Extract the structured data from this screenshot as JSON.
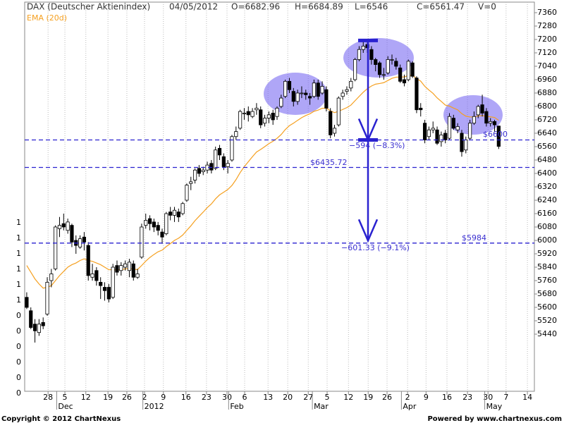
{
  "chart_data": {
    "type": "candlestick",
    "title": "DAX (Deutscher Aktienindex)",
    "header": [
      "04/05/2012",
      "O=6682.96",
      "H=6684.89",
      "L=6546",
      "C=6561.47",
      "V=0"
    ],
    "footer_left": "Copyright © 2012 ChartNexus",
    "footer_right": "Powered by www.chartnexus.com",
    "left_axis_labels": [
      "1",
      "1",
      "1",
      "1",
      "1",
      "1",
      "0",
      "0",
      "0",
      "0",
      "0",
      "0"
    ],
    "up_color": "#ffffff",
    "down_color": "#000000",
    "wick_color": "#000000",
    "xlim": [
      -0.5,
      123.7
    ],
    "ylim": [
      5099,
      7423
    ],
    "yticks": [
      5440,
      5520,
      5600,
      5680,
      5760,
      5840,
      5920,
      6000,
      6080,
      6160,
      6240,
      6320,
      6400,
      6480,
      6560,
      6640,
      6720,
      6800,
      6880,
      6960,
      7040,
      7120,
      7200,
      7280,
      7360
    ],
    "grid": "x",
    "xticks": [
      {
        "value": 5.2,
        "label": "28"
      },
      {
        "value": 9.3,
        "label": "5"
      },
      {
        "value": 14.4,
        "label": "12"
      },
      {
        "value": 19.8,
        "label": "19"
      },
      {
        "value": 24.4,
        "label": "26"
      },
      {
        "value": 28.7,
        "label": "2"
      },
      {
        "value": 33.3,
        "label": "9"
      },
      {
        "value": 38.8,
        "label": "16"
      },
      {
        "value": 43.8,
        "label": "23"
      },
      {
        "value": 48.8,
        "label": "30"
      },
      {
        "value": 53.1,
        "label": "6"
      },
      {
        "value": 58.8,
        "label": "13"
      },
      {
        "value": 63.6,
        "label": "20"
      },
      {
        "value": 68.6,
        "label": "27"
      },
      {
        "value": 73.2,
        "label": "5"
      },
      {
        "value": 78.4,
        "label": "12"
      },
      {
        "value": 83.2,
        "label": "19"
      },
      {
        "value": 87.8,
        "label": "26"
      },
      {
        "value": 92.8,
        "label": "2"
      },
      {
        "value": 97.3,
        "label": "9"
      },
      {
        "value": 102.4,
        "label": "16"
      },
      {
        "value": 107.4,
        "label": "23"
      },
      {
        "value": 112.4,
        "label": "30"
      },
      {
        "value": 116.8,
        "label": "7"
      },
      {
        "value": 122,
        "label": "14"
      }
    ],
    "month_labels": [
      {
        "value": 7.3,
        "label": "Dec"
      },
      {
        "value": 28.3,
        "label": "2012"
      },
      {
        "value": 49.2,
        "label": "Feb"
      },
      {
        "value": 69.6,
        "label": "Mar"
      },
      {
        "value": 91.3,
        "label": "Apr"
      },
      {
        "value": 111.6,
        "label": "May"
      }
    ],
    "open": [
      5660,
      5580,
      5500,
      5450,
      5510,
      5560,
      5760,
      5830,
      6070,
      6100,
      6060,
      6090,
      6000,
      5960,
      6020,
      5970,
      5780,
      5820,
      5750,
      5720,
      5720,
      5660,
      5850,
      5820,
      5840,
      5820,
      5860,
      5780,
      5900,
      6090,
      6130,
      6110,
      6090,
      6050,
      6040,
      6170,
      6150,
      6170,
      6160,
      6240,
      6340,
      6360,
      6430,
      6410,
      6420,
      6460,
      6430,
      6550,
      6500,
      6440,
      6480,
      6620,
      6670,
      6760,
      6770,
      6740,
      6780,
      6780,
      6700,
      6730,
      6760,
      6740,
      6800,
      6860,
      6950,
      6890,
      6830,
      6880,
      6880,
      6860,
      6860,
      6940,
      6880,
      6900,
      6770,
      6640,
      6690,
      6860,
      6890,
      6910,
      6960,
      7080,
      7140,
      7170,
      7140,
      7080,
      7060,
      6990,
      7000,
      7080,
      7070,
      7030,
      6960,
      6960,
      7060,
      6970,
      6790,
      6700,
      6620,
      6660,
      6660,
      6590,
      6640,
      6610,
      6730,
      6660,
      6640,
      6540,
      6610,
      6700,
      6750,
      6810,
      6770,
      6700,
      6710,
      6682.96
    ],
    "high": [
      5690,
      5600,
      5530,
      5530,
      5540,
      5780,
      5830,
      6090,
      6140,
      6160,
      6130,
      6100,
      6030,
      6030,
      6050,
      5990,
      5860,
      5840,
      5780,
      5750,
      5740,
      5860,
      5880,
      5870,
      5880,
      5890,
      5880,
      5830,
      6100,
      6160,
      6150,
      6130,
      6110,
      6070,
      6170,
      6200,
      6200,
      6190,
      6230,
      6340,
      6380,
      6430,
      6450,
      6440,
      6470,
      6480,
      6560,
      6570,
      6520,
      6480,
      6630,
      6680,
      6780,
      6790,
      6800,
      6790,
      6820,
      6800,
      6750,
      6770,
      6780,
      6800,
      6870,
      6960,
      6970,
      6910,
      6900,
      6920,
      6900,
      6880,
      6960,
      6960,
      6950,
      6920,
      6790,
      6690,
      6860,
      6900,
      6920,
      6970,
      7090,
      7160,
      7190,
      7190,
      7160,
      7090,
      7070,
      7030,
      7100,
      7110,
      7090,
      7050,
      6990,
      7080,
      7070,
      6980,
      6820,
      6720,
      6680,
      6710,
      6680,
      6650,
      6660,
      6760,
      6750,
      6700,
      6660,
      6620,
      6720,
      6770,
      6810,
      6870,
      6790,
      6730,
      6720,
      6684.89
    ],
    "low": [
      5590,
      5470,
      5390,
      5430,
      5470,
      5550,
      5720,
      5820,
      6020,
      6060,
      6040,
      5960,
      5920,
      5950,
      5940,
      5760,
      5760,
      5730,
      5650,
      5640,
      5630,
      5650,
      5790,
      5790,
      5820,
      5780,
      5760,
      5770,
      5890,
      6070,
      6060,
      6050,
      6030,
      5980,
      6030,
      6120,
      6110,
      6110,
      6150,
      6230,
      6300,
      6340,
      6380,
      6390,
      6400,
      6400,
      6420,
      6480,
      6420,
      6400,
      6470,
      6600,
      6660,
      6720,
      6710,
      6730,
      6750,
      6670,
      6680,
      6700,
      6690,
      6720,
      6790,
      6850,
      6880,
      6800,
      6810,
      6850,
      6840,
      6810,
      6850,
      6840,
      6870,
      6770,
      6610,
      6620,
      6680,
      6840,
      6870,
      6890,
      6950,
      7070,
      7120,
      7120,
      7050,
      7010,
      6970,
      6960,
      6990,
      7050,
      7020,
      6940,
      6920,
      6950,
      6970,
      6760,
      6740,
      6580,
      6600,
      6640,
      6570,
      6560,
      6580,
      6600,
      6660,
      6640,
      6500,
      6520,
      6600,
      6690,
      6730,
      6740,
      6680,
      6680,
      6650,
      6546
    ],
    "close": [
      5600,
      5480,
      5460,
      5500,
      5490,
      5750,
      5800,
      6080,
      6090,
      6080,
      6110,
      5990,
      5970,
      6010,
      5990,
      5790,
      5800,
      5760,
      5730,
      5700,
      5650,
      5840,
      5810,
      5850,
      5860,
      5870,
      5780,
      5800,
      6080,
      6120,
      6100,
      6080,
      6060,
      6020,
      6160,
      6150,
      6180,
      6140,
      6220,
      6330,
      6350,
      6420,
      6400,
      6420,
      6450,
      6420,
      6540,
      6510,
      6440,
      6460,
      6620,
      6650,
      6770,
      6760,
      6750,
      6770,
      6790,
      6690,
      6730,
      6750,
      6720,
      6790,
      6850,
      6950,
      6900,
      6830,
      6880,
      6880,
      6870,
      6850,
      6940,
      6860,
      6920,
      6790,
      6630,
      6670,
      6850,
      6880,
      6900,
      6950,
      7080,
      7140,
      7160,
      7150,
      7080,
      7050,
      6990,
      6990,
      7080,
      7080,
      7040,
      6950,
      6940,
      7070,
      6980,
      6780,
      6780,
      6600,
      6660,
      6670,
      6580,
      6630,
      6600,
      6740,
      6670,
      6680,
      6530,
      6600,
      6700,
      6740,
      6800,
      6760,
      6700,
      6710,
      6690,
      6561.47
    ],
    "ema": {
      "name": "EMA (20d)",
      "color": "#f5a020",
      "values": [
        5850,
        5810,
        5770,
        5740,
        5715,
        5720,
        5730,
        5760,
        5790,
        5815,
        5840,
        5855,
        5865,
        5880,
        5890,
        5880,
        5875,
        5865,
        5855,
        5840,
        5825,
        5825,
        5823,
        5826,
        5830,
        5833,
        5828,
        5826,
        5850,
        5876,
        5898,
        5916,
        5932,
        5942,
        5963,
        5981,
        6000,
        6013,
        6032,
        6060,
        6087,
        6118,
        6144,
        6169,
        6196,
        6218,
        6248,
        6272,
        6288,
        6304,
        6328,
        6363,
        6405,
        6440,
        6470,
        6500,
        6528,
        6543,
        6560,
        6578,
        6592,
        6610,
        6632,
        6662,
        6685,
        6700,
        6717,
        6733,
        6746,
        6756,
        6771,
        6778,
        6789,
        6790,
        6774,
        6763,
        6771,
        6782,
        6793,
        6808,
        6834,
        6860,
        6885,
        6906,
        6922,
        6933,
        6937,
        6942,
        6955,
        6968,
        6975,
        6976,
        6976,
        6985,
        6985,
        6967,
        6951,
        6920,
        6898,
        6878,
        6851,
        6830,
        6808,
        6802,
        6790,
        6780,
        6757,
        6742,
        6737,
        6737,
        6743,
        6745,
        6741,
        6738,
        6734,
        6717
      ]
    },
    "hline_color": "#2a22d0",
    "hlines": [
      {
        "value": 6600,
        "label": "$6600"
      },
      {
        "value": 6435.72,
        "label": "$6435.72"
      },
      {
        "value": 5984,
        "label": "$5984"
      }
    ],
    "drops": [
      {
        "from": 7194,
        "to": 6600,
        "label": "−594 (−8.3%)"
      },
      {
        "from": 6600,
        "to": 5998.67,
        "label": "−601.33 (−9.1%)"
      }
    ]
  }
}
